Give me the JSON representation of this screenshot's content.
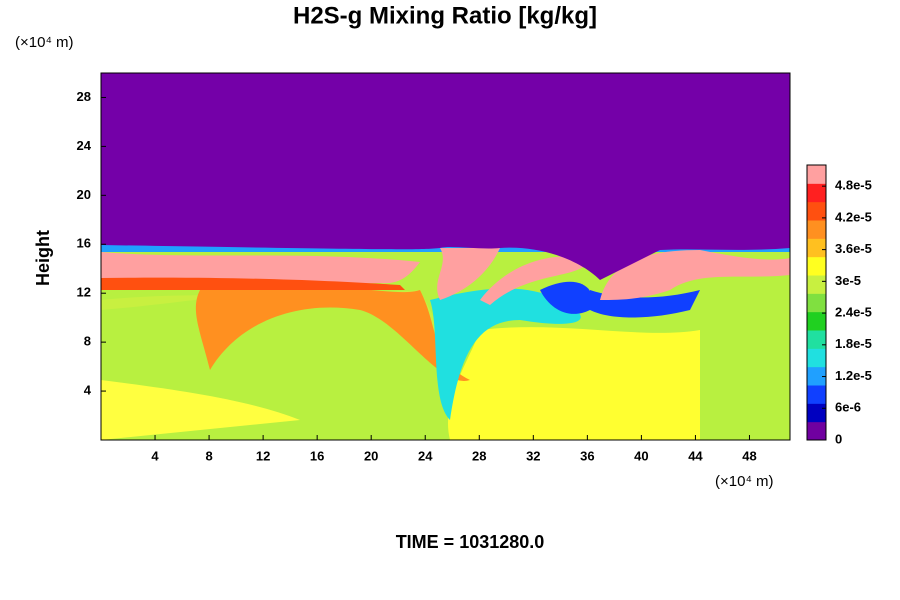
{
  "chart_data": {
    "type": "contour",
    "title": "H2S-g Mixing Ratio [kg/kg]",
    "y_label": "Height",
    "y_unit": "(×10⁴ m)",
    "x_unit": "(×10⁴ m)",
    "footer": "TIME = 1031280.0",
    "xlim": [
      0,
      51
    ],
    "xticks": [
      4,
      8,
      12,
      16,
      20,
      24,
      28,
      32,
      36,
      40,
      44,
      48
    ],
    "ylim": [
      0,
      30
    ],
    "yticks": [
      4,
      8,
      12,
      16,
      20,
      24,
      28
    ],
    "colorbar_lim": [
      0,
      5.2e-05
    ],
    "colorbar_ticks": [
      0,
      {
        "value": 6e-06,
        "label": "6e-6"
      },
      {
        "value": 1.2e-05,
        "label": "1.2e-5"
      },
      {
        "value": 1.8e-05,
        "label": "1.8e-5"
      },
      {
        "value": 2.4e-05,
        "label": "2.4e-5"
      },
      {
        "value": 3e-05,
        "label": "3e-5"
      },
      {
        "value": 3.6e-05,
        "label": "3.6e-5"
      },
      {
        "value": 4.2e-05,
        "label": "4.2e-5"
      },
      {
        "value": 4.8e-05,
        "label": "4.8e-5"
      }
    ],
    "colors": [
      "#7000a0",
      "#0000c0",
      "#1040ff",
      "#20a0ff",
      "#20e0e0",
      "#20e0a0",
      "#20d020",
      "#80e040",
      "#c8f040",
      "#ffff20",
      "#ffc020",
      "#ff9020",
      "#ff5010",
      "#ff2020",
      "#ffa0a0"
    ]
  }
}
